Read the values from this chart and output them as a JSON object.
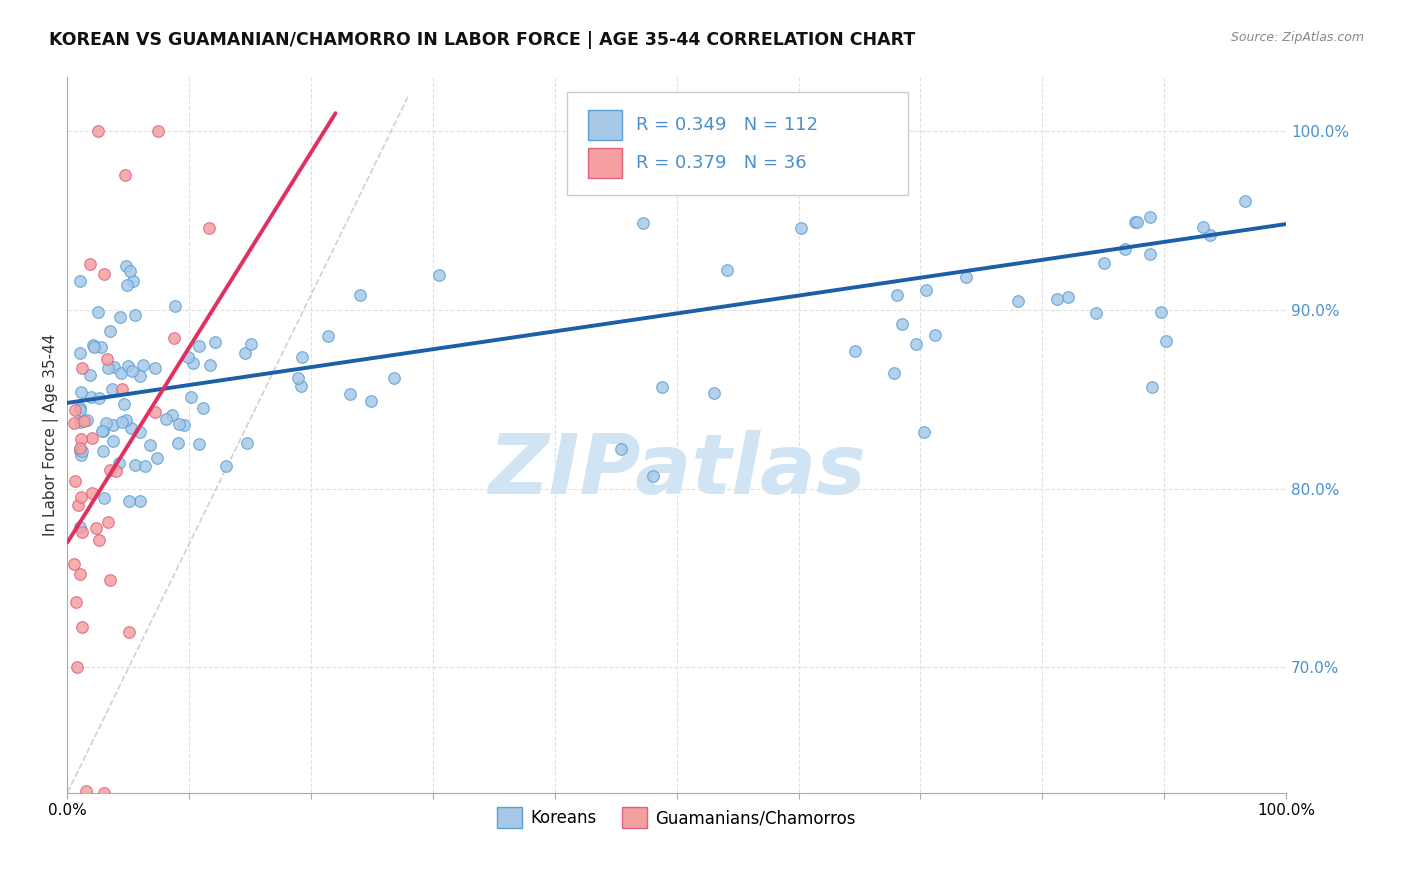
{
  "title": "KOREAN VS GUAMANIAN/CHAMORRO IN LABOR FORCE | AGE 35-44 CORRELATION CHART",
  "source": "Source: ZipAtlas.com",
  "ylabel": "In Labor Force | Age 35-44",
  "xlim": [
    0.0,
    1.0
  ],
  "ylim": [
    0.63,
    1.03
  ],
  "yticks_right": [
    0.7,
    0.8,
    0.9,
    1.0
  ],
  "yticklabels_right": [
    "70.0%",
    "80.0%",
    "90.0%",
    "100.0%"
  ],
  "legend_R1": "0.349",
  "legend_N1": "112",
  "legend_R2": "0.379",
  "legend_N2": "36",
  "blue_color": "#a8c8e8",
  "blue_edge": "#5a9fd4",
  "pink_color": "#f4a0a0",
  "pink_edge": "#e06080",
  "trend_blue": "#1a5fa8",
  "trend_pink": "#e03060",
  "ref_line_color": "#cccccc",
  "watermark": "ZIPatlas",
  "watermark_color": "#d0e4f4",
  "grid_color": "#e0e0e0",
  "title_color": "#111111",
  "right_tick_color": "#4a90d0",
  "legend_text_color": "#111111",
  "legend_val_color": "#4a90d0"
}
